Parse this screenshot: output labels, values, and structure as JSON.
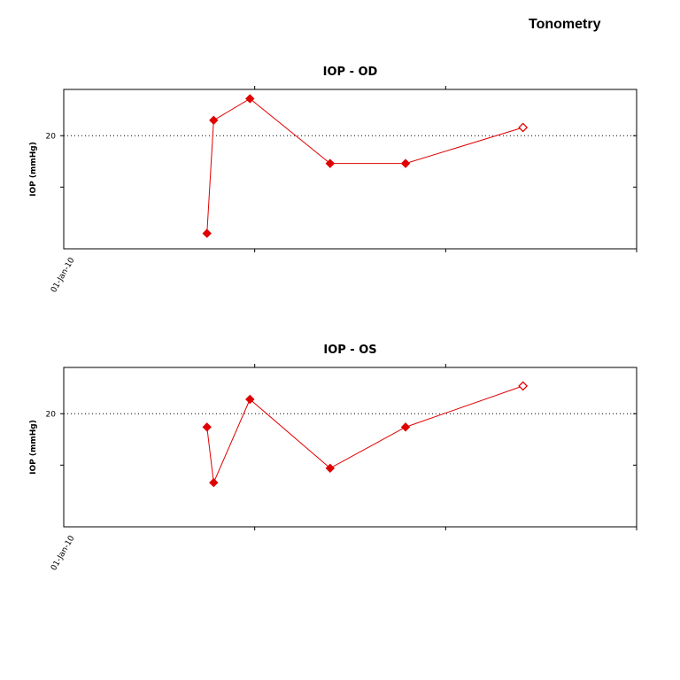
{
  "page_title": "Tonometry",
  "chart_data": [
    {
      "type": "line",
      "title": "IOP - OD",
      "xlabel": "",
      "ylabel": "IOP (mmHg)",
      "x_tick_labels": [
        "01-Jan-10"
      ],
      "y_tick_labels": [
        "20"
      ],
      "reference_line": 20,
      "ylim": [
        9,
        24.5
      ],
      "grid": false,
      "series": [
        {
          "color": "#e00000",
          "points": [
            {
              "x": 1.5,
              "y": 10.5,
              "marker": "filled"
            },
            {
              "x": 1.57,
              "y": 21.5,
              "marker": "filled"
            },
            {
              "x": 1.95,
              "y": 23.6,
              "marker": "filled"
            },
            {
              "x": 2.79,
              "y": 17.3,
              "marker": "filled"
            },
            {
              "x": 3.58,
              "y": 17.3,
              "marker": "filled"
            },
            {
              "x": 4.81,
              "y": 20.8,
              "marker": "open"
            }
          ]
        }
      ],
      "xlim": [
        0,
        6
      ]
    },
    {
      "type": "line",
      "title": "IOP - OS",
      "xlabel": "",
      "ylabel": "IOP (mmHg)",
      "x_tick_labels": [
        "01-Jan-10"
      ],
      "y_tick_labels": [
        "20"
      ],
      "reference_line": 20,
      "ylim": [
        9,
        24.5
      ],
      "grid": false,
      "series": [
        {
          "color": "#e00000",
          "points": [
            {
              "x": 1.5,
              "y": 18.7,
              "marker": "filled"
            },
            {
              "x": 1.57,
              "y": 13.3,
              "marker": "filled"
            },
            {
              "x": 1.95,
              "y": 21.4,
              "marker": "filled"
            },
            {
              "x": 2.79,
              "y": 14.7,
              "marker": "filled"
            },
            {
              "x": 3.58,
              "y": 18.7,
              "marker": "filled"
            },
            {
              "x": 4.81,
              "y": 22.7,
              "marker": "open"
            }
          ]
        }
      ],
      "xlim": [
        0,
        6
      ]
    }
  ]
}
